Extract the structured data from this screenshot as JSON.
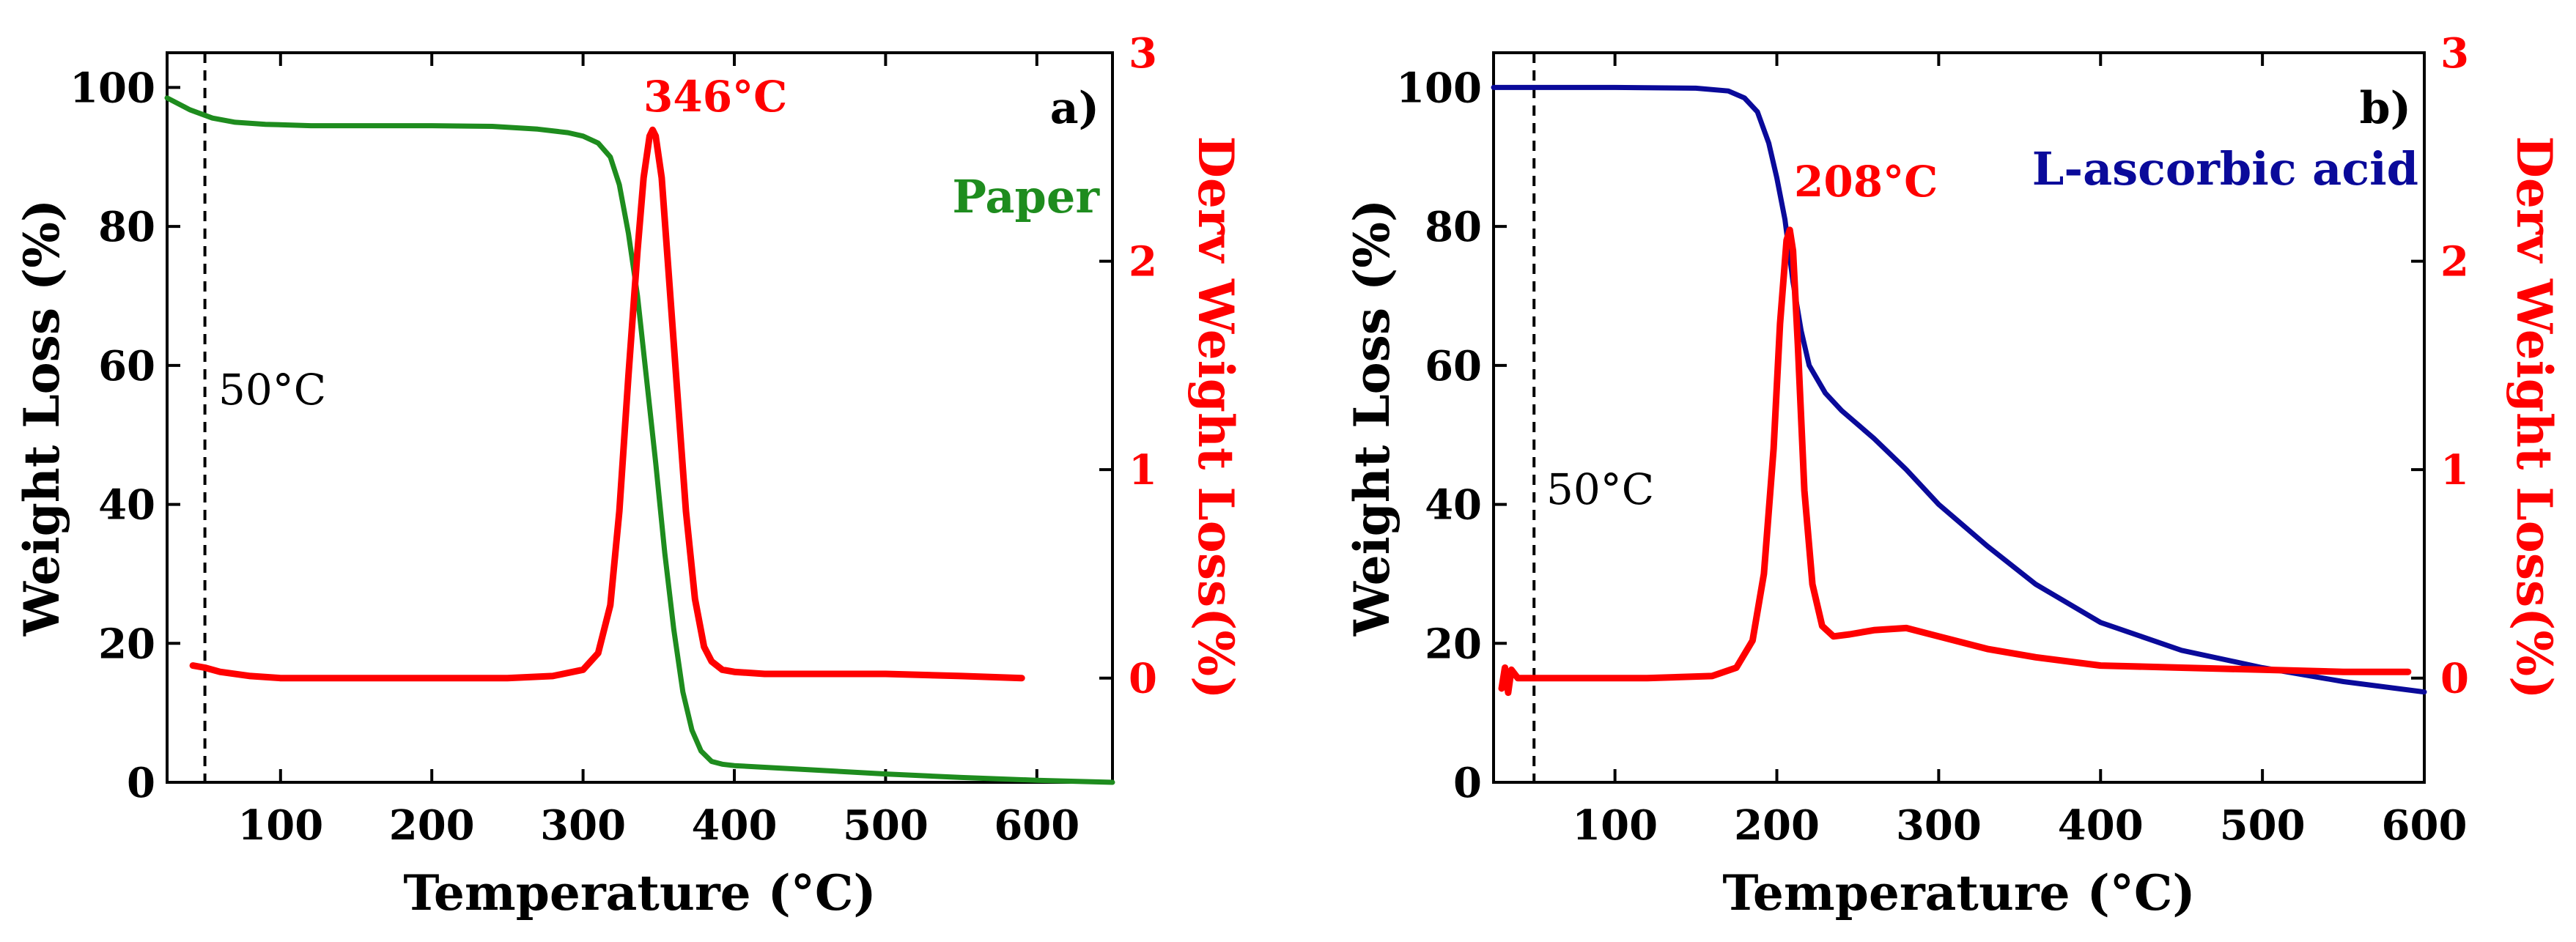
{
  "chart_data": [
    {
      "type": "line",
      "panel_label": "a)",
      "sample_label": "Paper",
      "xlabel": "Temperature (°C)",
      "ylabel": "Weight Loss (%)",
      "y2label": "Derv Weight Loss(%)",
      "xlim": [
        25,
        650
      ],
      "ylim": [
        0,
        105
      ],
      "y2lim": [
        -0.5,
        3
      ],
      "xticks": [
        "100",
        "200",
        "300",
        "400",
        "500",
        "600"
      ],
      "xtick_values": [
        100,
        200,
        300,
        400,
        500,
        600
      ],
      "yticks": [
        "0",
        "20",
        "40",
        "60",
        "80",
        "100"
      ],
      "ytick_values": [
        0,
        20,
        40,
        60,
        80,
        100
      ],
      "y2ticks": [
        "0",
        "1",
        "2",
        "3"
      ],
      "y2tick_values": [
        0,
        1,
        2,
        3
      ],
      "vline": {
        "x": 50,
        "label": "50°C"
      },
      "peak_label": "346°C",
      "series": [
        {
          "name": "Paper weight",
          "axis": "left",
          "color": "#1e8c1e",
          "x": [
            25,
            40,
            55,
            70,
            90,
            120,
            160,
            200,
            240,
            270,
            290,
            300,
            310,
            318,
            324,
            330,
            336,
            342,
            348,
            354,
            360,
            366,
            372,
            378,
            385,
            392,
            400,
            450,
            500,
            550,
            600,
            650
          ],
          "y": [
            98.5,
            96.8,
            95.6,
            95.0,
            94.7,
            94.5,
            94.5,
            94.5,
            94.4,
            94.0,
            93.5,
            93.0,
            92.0,
            90.0,
            86.0,
            79.0,
            70.0,
            58.0,
            46.0,
            33.0,
            22.0,
            13.0,
            7.5,
            4.5,
            3.0,
            2.6,
            2.4,
            1.8,
            1.2,
            0.7,
            0.3,
            0.0
          ]
        },
        {
          "name": "Paper derivative",
          "axis": "right",
          "color": "#ff0000",
          "x": [
            42,
            50,
            60,
            80,
            100,
            150,
            200,
            250,
            280,
            300,
            310,
            318,
            324,
            330,
            336,
            340,
            344,
            346,
            348,
            352,
            356,
            362,
            368,
            374,
            380,
            385,
            392,
            400,
            420,
            450,
            500,
            550,
            590
          ],
          "y": [
            0.06,
            0.05,
            0.03,
            0.01,
            0.0,
            0.0,
            0.0,
            0.0,
            0.01,
            0.04,
            0.12,
            0.35,
            0.8,
            1.45,
            2.05,
            2.4,
            2.6,
            2.63,
            2.6,
            2.4,
            2.0,
            1.4,
            0.8,
            0.38,
            0.15,
            0.08,
            0.04,
            0.03,
            0.02,
            0.02,
            0.02,
            0.01,
            0.0
          ]
        }
      ]
    },
    {
      "type": "line",
      "panel_label": "b)",
      "sample_label": "L-ascorbic acid",
      "xlabel": "Temperature (°C)",
      "ylabel": "Weight Loss (%)",
      "y2label": "Derv Weight Loss(%)",
      "xlim": [
        25,
        600
      ],
      "ylim": [
        0,
        105
      ],
      "y2lim": [
        -0.5,
        3
      ],
      "xticks": [
        "100",
        "200",
        "300",
        "400",
        "500",
        "600"
      ],
      "xtick_values": [
        100,
        200,
        300,
        400,
        500,
        600
      ],
      "yticks": [
        "0",
        "20",
        "40",
        "60",
        "80",
        "100"
      ],
      "ytick_values": [
        0,
        20,
        40,
        60,
        80,
        100
      ],
      "y2ticks": [
        "0",
        "1",
        "2",
        "3"
      ],
      "y2tick_values": [
        0,
        1,
        2,
        3
      ],
      "vline": {
        "x": 50,
        "label": "50°C"
      },
      "peak_label": "208°C",
      "series": [
        {
          "name": "L-ascorbic acid weight",
          "axis": "left",
          "color": "#0a0a9a",
          "x": [
            25,
            100,
            150,
            170,
            180,
            188,
            195,
            200,
            205,
            210,
            215,
            220,
            230,
            240,
            250,
            260,
            280,
            300,
            330,
            360,
            400,
            450,
            500,
            550,
            600
          ],
          "y": [
            100.0,
            100.0,
            99.9,
            99.5,
            98.5,
            96.5,
            92.0,
            87.0,
            81.0,
            72.0,
            65.0,
            60.0,
            56.0,
            53.5,
            51.5,
            49.5,
            45.0,
            40.0,
            34.0,
            28.5,
            23.0,
            19.0,
            16.5,
            14.5,
            13.0
          ]
        },
        {
          "name": "L-ascorbic acid derivative",
          "axis": "right",
          "color": "#ff0000",
          "x": [
            30,
            32,
            34,
            36,
            40,
            50,
            80,
            120,
            160,
            175,
            185,
            192,
            198,
            202,
            206,
            208,
            210,
            213,
            217,
            222,
            228,
            235,
            245,
            260,
            280,
            300,
            330,
            360,
            400,
            450,
            500,
            550,
            590
          ],
          "y": [
            -0.05,
            0.05,
            -0.07,
            0.04,
            0.0,
            0.0,
            0.0,
            0.0,
            0.01,
            0.05,
            0.18,
            0.5,
            1.1,
            1.7,
            2.1,
            2.15,
            2.05,
            1.6,
            0.9,
            0.45,
            0.25,
            0.2,
            0.21,
            0.23,
            0.24,
            0.2,
            0.14,
            0.1,
            0.06,
            0.05,
            0.04,
            0.03,
            0.03
          ]
        }
      ]
    }
  ]
}
